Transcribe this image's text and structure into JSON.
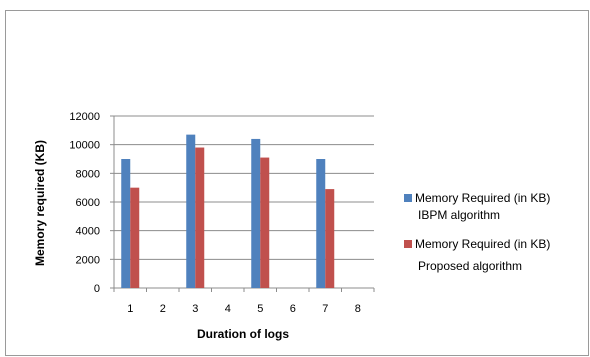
{
  "chart_data": {
    "type": "bar",
    "title": "",
    "xlabel": "Duration of logs",
    "ylabel": "Memory required (KB)",
    "categories": [
      "1",
      "2",
      "3",
      "4",
      "5",
      "6",
      "7",
      "8"
    ],
    "ylim": [
      0,
      12000
    ],
    "yticks": [
      0,
      2000,
      4000,
      6000,
      8000,
      10000,
      12000
    ],
    "grid": true,
    "legend_position": "right",
    "series": [
      {
        "name_line1": "Memory Required (in KB)",
        "name_line2": "IBPM algorithm",
        "color": "#4f81bd",
        "values": [
          9000,
          null,
          10700,
          null,
          10400,
          null,
          9000,
          null
        ]
      },
      {
        "name_line1": "Memory Required (in KB)",
        "name_line2": "Proposed algorithm",
        "color": "#c0504d",
        "values": [
          7000,
          null,
          9800,
          null,
          9100,
          null,
          6900,
          null
        ]
      }
    ]
  }
}
